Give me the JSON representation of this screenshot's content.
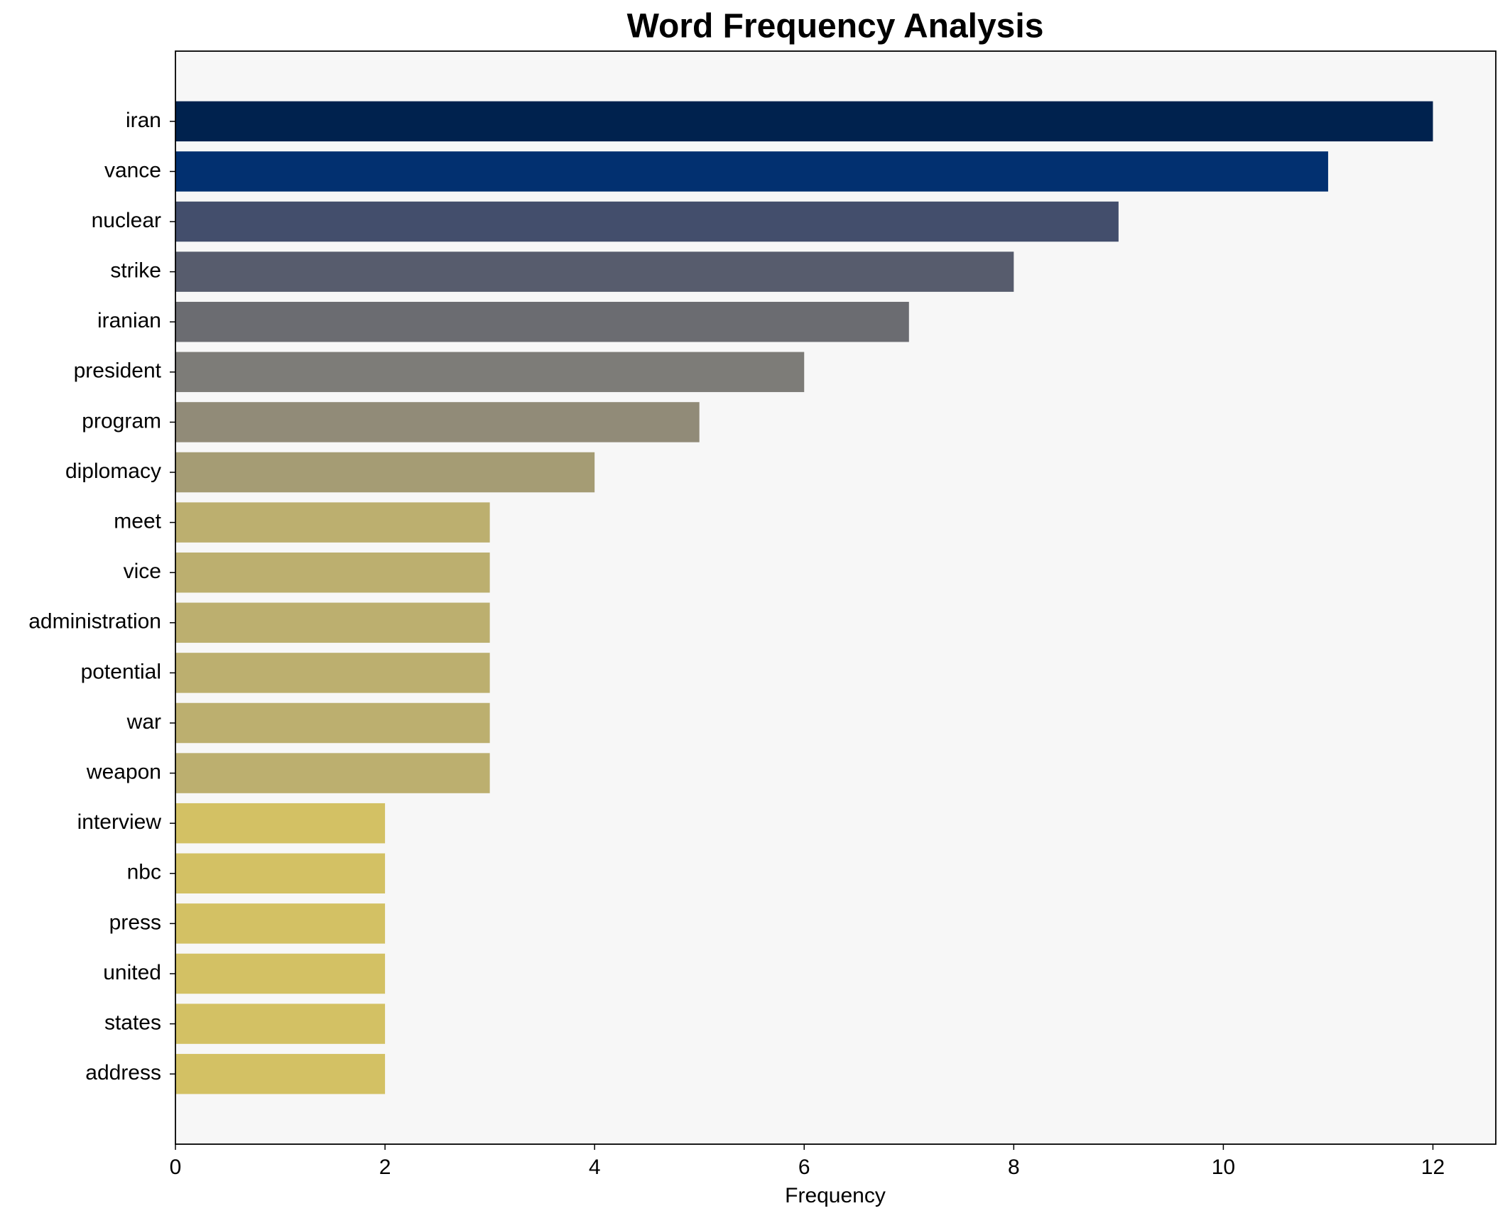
{
  "chart_data": {
    "type": "bar",
    "orientation": "horizontal",
    "title": "Word Frequency Analysis",
    "xlabel": "Frequency",
    "categories": [
      "iran",
      "vance",
      "nuclear",
      "strike",
      "iranian",
      "president",
      "program",
      "diplomacy",
      "meet",
      "vice",
      "administration",
      "potential",
      "war",
      "weapon",
      "interview",
      "nbc",
      "press",
      "united",
      "states",
      "address"
    ],
    "values": [
      12,
      11,
      9,
      8,
      7,
      6,
      5,
      4,
      3,
      3,
      3,
      3,
      3,
      3,
      2,
      2,
      2,
      2,
      2,
      2
    ],
    "colors": [
      "#00224e",
      "#023070",
      "#434e6c",
      "#575c6d",
      "#6b6c71",
      "#7d7c78",
      "#918b78",
      "#a59c74",
      "#bcaf6f",
      "#bcaf6f",
      "#bcaf6f",
      "#bcaf6f",
      "#bcaf6f",
      "#bcaf6f",
      "#d3c164",
      "#d3c164",
      "#d3c164",
      "#d3c164",
      "#d3c164",
      "#d3c164"
    ],
    "xlim": [
      0,
      12.6
    ],
    "xticks": [
      0,
      2,
      4,
      6,
      8,
      10,
      12
    ],
    "grid": false
  }
}
